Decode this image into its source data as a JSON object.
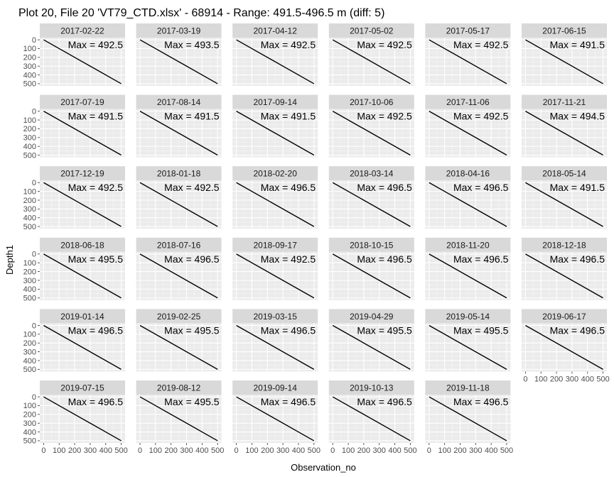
{
  "chart_data": {
    "type": "line",
    "title": "Plot 20, File 20 'VT79_CTD.xlsx' - 68914 - Range: 491.5-496.5 m (diff: 5)",
    "xlabel": "Observation_no",
    "ylabel": "Depth1",
    "xlim": [
      0,
      500
    ],
    "ylim": [
      500,
      0
    ],
    "x_ticks": [
      0,
      100,
      200,
      300,
      400,
      500
    ],
    "y_ticks": [
      0,
      100,
      200,
      300,
      400,
      500
    ],
    "y_reversed": true,
    "grid": true,
    "facet_layout": {
      "columns": 6,
      "rows": 6
    },
    "facets": [
      {
        "date": "2017-02-22",
        "label": "Max = 492.5",
        "max": 492.5
      },
      {
        "date": "2017-03-19",
        "label": "Max = 493.5",
        "max": 493.5
      },
      {
        "date": "2017-04-12",
        "label": "Max = 492.5",
        "max": 492.5
      },
      {
        "date": "2017-05-02",
        "label": "Max = 492.5",
        "max": 492.5
      },
      {
        "date": "2017-05-17",
        "label": "Max = 492.5",
        "max": 492.5
      },
      {
        "date": "2017-06-15",
        "label": "Max = 491.5",
        "max": 491.5
      },
      {
        "date": "2017-07-19",
        "label": "Max = 491.5",
        "max": 491.5
      },
      {
        "date": "2017-08-14",
        "label": "Max = 491.5",
        "max": 491.5
      },
      {
        "date": "2017-09-14",
        "label": "Max = 491.5",
        "max": 491.5
      },
      {
        "date": "2017-10-06",
        "label": "Max = 492.5",
        "max": 492.5
      },
      {
        "date": "2017-11-06",
        "label": "Max = 492.5",
        "max": 492.5
      },
      {
        "date": "2017-11-21",
        "label": "Max = 494.5",
        "max": 494.5
      },
      {
        "date": "2017-12-19",
        "label": "Max = 492.5",
        "max": 492.5
      },
      {
        "date": "2018-01-18",
        "label": "Max = 492.5",
        "max": 492.5
      },
      {
        "date": "2018-02-20",
        "label": "Max = 496.5",
        "max": 496.5
      },
      {
        "date": "2018-03-14",
        "label": "Max = 496.5",
        "max": 496.5
      },
      {
        "date": "2018-04-16",
        "label": "Max = 496.5",
        "max": 496.5
      },
      {
        "date": "2018-05-14",
        "label": "Max = 491.5",
        "max": 491.5
      },
      {
        "date": "2018-06-18",
        "label": "Max = 495.5",
        "max": 495.5
      },
      {
        "date": "2018-07-16",
        "label": "Max = 496.5",
        "max": 496.5
      },
      {
        "date": "2018-09-17",
        "label": "Max = 492.5",
        "max": 492.5
      },
      {
        "date": "2018-10-15",
        "label": "Max = 496.5",
        "max": 496.5
      },
      {
        "date": "2018-11-20",
        "label": "Max = 496.5",
        "max": 496.5
      },
      {
        "date": "2018-12-18",
        "label": "Max = 496.5",
        "max": 496.5
      },
      {
        "date": "2019-01-14",
        "label": "Max = 496.5",
        "max": 496.5
      },
      {
        "date": "2019-02-25",
        "label": "Max = 495.5",
        "max": 495.5
      },
      {
        "date": "2019-03-15",
        "label": "Max = 496.5",
        "max": 496.5
      },
      {
        "date": "2019-04-29",
        "label": "Max = 495.5",
        "max": 495.5
      },
      {
        "date": "2019-05-14",
        "label": "Max = 495.5",
        "max": 495.5
      },
      {
        "date": "2019-06-17",
        "label": "Max = 496.5",
        "max": 496.5
      },
      {
        "date": "2019-07-15",
        "label": "Max = 496.5",
        "max": 496.5
      },
      {
        "date": "2019-08-12",
        "label": "Max = 495.5",
        "max": 495.5
      },
      {
        "date": "2019-09-14",
        "label": "Max = 496.5",
        "max": 496.5
      },
      {
        "date": "2019-10-13",
        "label": "Max = 496.5",
        "max": 496.5
      },
      {
        "date": "2019-11-18",
        "label": "Max = 496.5",
        "max": 496.5
      }
    ],
    "colors": {
      "panel_background": "#ebebeb",
      "strip_background": "#d9d9d9",
      "grid_major": "#ffffff",
      "grid_minor": "#f5f5f5",
      "line": "#000000",
      "tick_text": "#4d4d4d"
    }
  }
}
